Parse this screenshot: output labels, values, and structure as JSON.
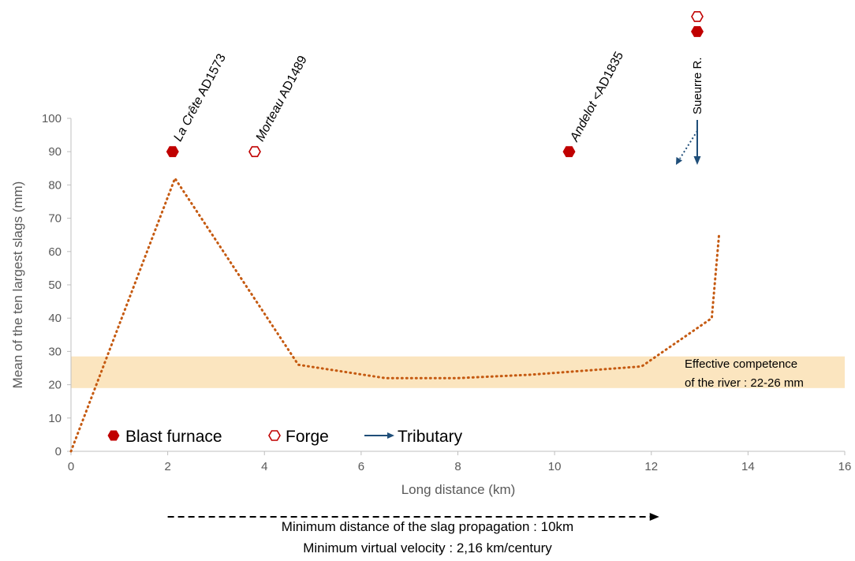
{
  "chart_data": {
    "type": "line",
    "xlabel": "Long distance (km)",
    "ylabel": "Mean of the ten largest slags (mm)",
    "xlim": [
      0,
      16
    ],
    "ylim": [
      0,
      100
    ],
    "x_ticks": [
      0,
      2,
      4,
      6,
      8,
      10,
      12,
      14,
      16
    ],
    "y_ticks": [
      0,
      10,
      20,
      30,
      40,
      50,
      60,
      70,
      80,
      90,
      100
    ],
    "grid": false,
    "series": [
      {
        "style": "dotted",
        "color": "#c55a11",
        "x": [
          0,
          2.15,
          4.7,
          6.5,
          8,
          9.5,
          11.8,
          13.25,
          13.4
        ],
        "y": [
          0,
          82,
          26,
          22,
          22,
          23,
          25.5,
          40,
          65
        ]
      }
    ],
    "band": {
      "y_range": [
        19,
        28.5
      ],
      "color": "#fbe5bf",
      "label_line1": "Effective competence",
      "label_line2": "of the river : 22-26 mm"
    },
    "sites": [
      {
        "name": "La Crête",
        "date": "AD1573",
        "type": "blast-furnace",
        "x": 2.1,
        "y": 90
      },
      {
        "name": "Morteau",
        "date": "AD1489",
        "type": "forge",
        "x": 3.8,
        "y": 90
      },
      {
        "name": "Andelot",
        "date": "<AD1835",
        "type": "blast-furnace",
        "x": 10.3,
        "y": 90
      }
    ],
    "tributary": {
      "label": "Sueurre R.",
      "x": 12.95
    },
    "legend": [
      {
        "label": "Blast furnace",
        "marker": "blast-furnace"
      },
      {
        "label": "Forge",
        "marker": "forge"
      },
      {
        "label": "Tributary",
        "marker": "tributary"
      }
    ],
    "annotations": {
      "propagation": "Minimum distance of the slag propagation : 10km",
      "velocity": "Minimum virtual velocity : 2,16 km/century",
      "propagation_from_km": 2,
      "propagation_to_km": 12
    },
    "colors": {
      "blast_furnace": "#c00000",
      "forge": "#c00000",
      "tributary": "#1f4e79",
      "axis": "#bfbfbf"
    }
  }
}
